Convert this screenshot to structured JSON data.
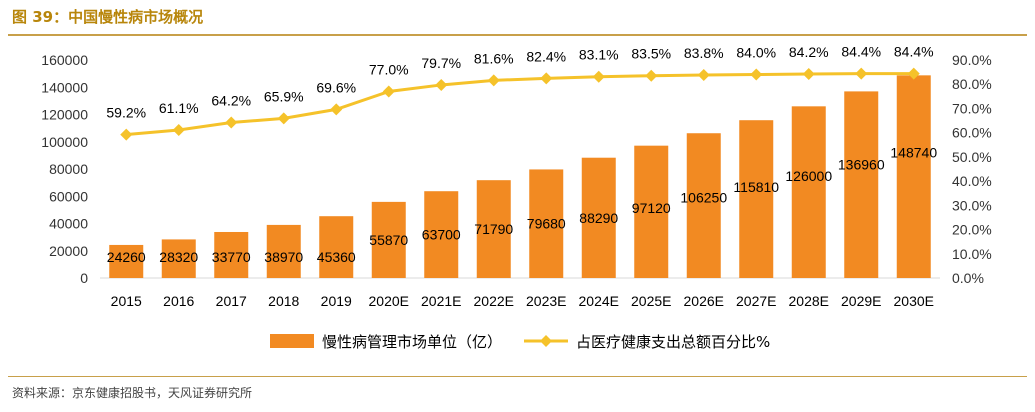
{
  "header": {
    "figure_title": "图 39：中国慢性病市场概况"
  },
  "footer": {
    "source": "资料来源：京东健康招股书，天风证券研究所"
  },
  "colors": {
    "bar": "#F28A22",
    "line": "#F5C22A",
    "axis": "#d9d9d9",
    "accent": "#c8a04a"
  },
  "chart_data": {
    "type": "bar",
    "categories": [
      "2015",
      "2016",
      "2017",
      "2018",
      "2019",
      "2020E",
      "2021E",
      "2022E",
      "2023E",
      "2024E",
      "2025E",
      "2026E",
      "2027E",
      "2028E",
      "2029E",
      "2030E"
    ],
    "series": [
      {
        "name": "慢性病管理市场单位（亿）",
        "type": "bar",
        "axis": "left",
        "values": [
          24260,
          28320,
          33770,
          38970,
          45360,
          55870,
          63700,
          71790,
          79680,
          88290,
          97120,
          106250,
          115810,
          126000,
          136960,
          148740
        ]
      },
      {
        "name": "占医疗健康支出总额百分比%",
        "type": "line",
        "axis": "right",
        "values": [
          59.2,
          61.1,
          64.2,
          65.9,
          69.6,
          77.0,
          79.7,
          81.6,
          82.4,
          83.1,
          83.5,
          83.8,
          84.0,
          84.2,
          84.4,
          84.4
        ],
        "labels": [
          "59.2%",
          "61.1%",
          "64.2%",
          "65.9%",
          "69.6%",
          "77.0%",
          "79.7%",
          "81.6%",
          "82.4%",
          "83.1%",
          "83.5%",
          "83.8%",
          "84.0%",
          "84.2%",
          "84.4%",
          "84.4%"
        ]
      }
    ],
    "y_left": {
      "ylim": [
        0,
        160000
      ],
      "ticks": [
        "0",
        "20000",
        "40000",
        "60000",
        "80000",
        "100000",
        "120000",
        "140000",
        "160000"
      ]
    },
    "y_right": {
      "ylim": [
        0,
        90
      ],
      "ticks": [
        "0.0%",
        "10.0%",
        "20.0%",
        "30.0%",
        "40.0%",
        "50.0%",
        "60.0%",
        "70.0%",
        "80.0%",
        "90.0%"
      ]
    },
    "legend_position": "bottom",
    "grid": false
  }
}
